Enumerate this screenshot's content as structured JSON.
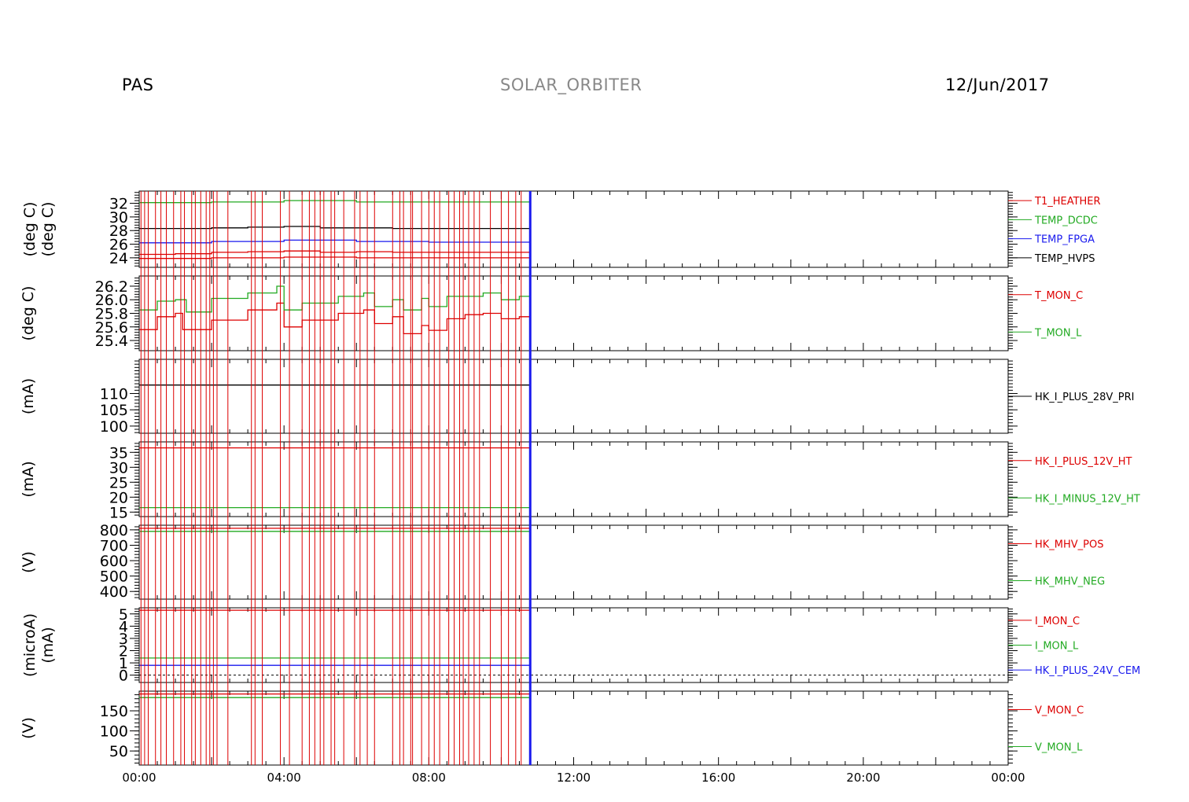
{
  "header": {
    "instrument": "PAS",
    "mission": "SOLAR_ORBITER",
    "date": "12/Jun/2017"
  },
  "colors": {
    "red": "#dd0000",
    "green": "#22aa22",
    "blue": "#1a1aee",
    "black": "#000000"
  },
  "chart_data": {
    "type": "line",
    "x_axis": {
      "unit": "hours",
      "range": [
        0,
        24
      ],
      "tick_labels": [
        "00:00",
        "04:00",
        "08:00",
        "12:00",
        "16:00",
        "20:00",
        "00:00"
      ],
      "tick_values": [
        0,
        4,
        8,
        12,
        16,
        20,
        24
      ]
    },
    "data_end_hour": 10.8,
    "panels": [
      {
        "ylabel": "(deg C)",
        "ylabel2": "(deg C)",
        "ylim": [
          22.6,
          33.8
        ],
        "yticks": [
          24,
          26,
          28,
          30,
          32
        ],
        "series": [
          {
            "name": "T1_HEATHER",
            "color": "red",
            "x": [
              0,
              1,
              2,
              3,
              4,
              5,
              6,
              7,
              8,
              9,
              10,
              10.8
            ],
            "y": [
              24.5,
              24.6,
              24.8,
              24.9,
              25.0,
              24.8,
              24.9,
              24.8,
              24.8,
              24.8,
              24.8,
              24.8
            ]
          },
          {
            "name": "TEMP_DCDC",
            "color": "green",
            "x": [
              0,
              2,
              4,
              6,
              8,
              10,
              10.8
            ],
            "y": [
              32.1,
              32.2,
              32.4,
              32.2,
              32.2,
              32.2,
              32.2
            ]
          },
          {
            "name": "TEMP_FPGA",
            "color": "blue",
            "x": [
              0,
              2,
              4,
              6,
              8,
              10,
              10.8
            ],
            "y": [
              26.2,
              26.4,
              26.6,
              26.4,
              26.3,
              26.3,
              26.3
            ]
          },
          {
            "name": "TEMP_HVPS",
            "color": "black",
            "x": [
              0,
              1,
              2,
              3,
              4,
              5,
              6,
              7,
              8,
              9,
              10,
              10.8
            ],
            "y": [
              28.3,
              28.3,
              28.4,
              28.5,
              28.6,
              28.4,
              28.4,
              28.3,
              28.3,
              28.3,
              28.3,
              28.3
            ]
          },
          {
            "name": "",
            "color": "red",
            "x": [
              0,
              2,
              4,
              6,
              8,
              10,
              10.8
            ],
            "y": [
              23.9,
              24.0,
              24.1,
              24.0,
              24.0,
              24.0,
              24.0
            ]
          }
        ]
      },
      {
        "ylabel": "(deg C)",
        "ylim": [
          25.25,
          26.35
        ],
        "yticks": [
          25.4,
          25.6,
          25.8,
          26.0,
          26.2
        ],
        "ytick_labels": [
          "25.4",
          "25.6",
          "25.8",
          "26.0",
          "26.2"
        ],
        "series": [
          {
            "name": "T_MON_C",
            "color": "red",
            "x": [
              0,
              0.5,
              1.0,
              1.2,
              2.0,
              3.0,
              3.8,
              4.0,
              4.5,
              5.5,
              6.2,
              6.5,
              7.0,
              7.3,
              7.8,
              8.0,
              8.5,
              9.0,
              9.5,
              10.0,
              10.5,
              10.8
            ],
            "y": [
              25.56,
              25.75,
              25.8,
              25.56,
              25.7,
              25.85,
              25.95,
              25.6,
              25.7,
              25.8,
              25.85,
              25.65,
              25.75,
              25.5,
              25.62,
              25.55,
              25.72,
              25.78,
              25.8,
              25.72,
              25.75,
              25.68
            ]
          },
          {
            "name": "T_MON_L",
            "color": "green",
            "x": [
              0,
              0.5,
              1.0,
              1.3,
              2.0,
              3.0,
              3.8,
              4.0,
              4.5,
              5.5,
              6.2,
              6.5,
              7.0,
              7.3,
              7.8,
              8.0,
              8.5,
              9.0,
              9.5,
              10.0,
              10.5,
              10.8
            ],
            "y": [
              25.85,
              25.98,
              26.0,
              25.82,
              26.02,
              26.1,
              26.2,
              25.85,
              25.95,
              26.05,
              26.1,
              25.9,
              26.0,
              25.85,
              26.02,
              25.9,
              26.05,
              26.05,
              26.1,
              26.0,
              26.05,
              25.95
            ]
          }
        ]
      },
      {
        "ylabel": "(mA)",
        "ylim": [
          97.8,
          120.5
        ],
        "yticks": [
          100,
          105,
          110
        ],
        "series": [
          {
            "name": "HK_I_PLUS_28V_PRI",
            "color": "black",
            "x": [
              0,
              10.8
            ],
            "y": [
              112.6,
              112.6
            ]
          }
        ]
      },
      {
        "ylabel": "(mA)",
        "ylim": [
          13.5,
          38.5
        ],
        "yticks": [
          15,
          20,
          25,
          30,
          35
        ],
        "series": [
          {
            "name": "HK_I_PLUS_12V_HT",
            "color": "red",
            "x": [
              0,
              10.8
            ],
            "y": [
              36.5,
              36.5
            ]
          },
          {
            "name": "HK_I_MINUS_12V_HT",
            "color": "green",
            "x": [
              0,
              10.8
            ],
            "y": [
              16.5,
              16.5
            ]
          }
        ]
      },
      {
        "ylabel": "(V)",
        "ylim": [
          350,
          830
        ],
        "yticks": [
          400,
          500,
          600,
          700,
          800
        ],
        "series": [
          {
            "name": "HK_MHV_POS",
            "color": "red",
            "x": [
              0,
              10.8
            ],
            "y": [
              810,
              810
            ]
          },
          {
            "name": "HK_MHV_NEG",
            "color": "green",
            "x": [
              0,
              10.8
            ],
            "y": [
              790,
              790
            ]
          }
        ]
      },
      {
        "ylabel": "(microA)",
        "ylabel2": "(mA)",
        "ylim": [
          -0.6,
          5.5
        ],
        "yticks": [
          0,
          1,
          2,
          3,
          4,
          5
        ],
        "zero_line": true,
        "series": [
          {
            "name": "I_MON_C",
            "color": "red",
            "x": [
              0,
              10.8
            ],
            "y": [
              5.3,
              5.3
            ]
          },
          {
            "name": "I_MON_L",
            "color": "green",
            "x": [
              0,
              10.8
            ],
            "y": [
              1.4,
              1.4
            ]
          },
          {
            "name": "HK_I_PLUS_24V_CEM",
            "color": "blue",
            "x": [
              0,
              10.8
            ],
            "y": [
              0.8,
              0.8
            ]
          }
        ]
      },
      {
        "ylabel": "(V)",
        "ylim": [
          15,
          199
        ],
        "yticks": [
          50,
          100,
          150
        ],
        "series": [
          {
            "name": "V_MON_C",
            "color": "red",
            "x": [
              0,
              10.8
            ],
            "y": [
              192,
              192
            ]
          },
          {
            "name": "V_MON_L",
            "color": "green",
            "x": [
              0,
              10.8
            ],
            "y": [
              183,
              183
            ]
          }
        ]
      }
    ],
    "event_marker_hours": [
      0.05,
      0.15,
      0.25,
      0.45,
      0.6,
      0.75,
      0.95,
      1.15,
      1.25,
      1.45,
      1.55,
      1.7,
      1.85,
      1.95,
      2.05,
      2.15,
      2.45,
      3.1,
      3.2,
      3.4,
      3.9,
      4.15,
      4.5,
      4.7,
      4.85,
      5.0,
      5.1,
      5.3,
      5.4,
      5.65,
      5.95,
      6.1,
      6.3,
      6.5,
      7.0,
      7.2,
      7.3,
      7.5,
      7.55,
      7.8,
      8.0,
      8.15,
      8.3,
      8.55,
      8.7,
      8.85,
      8.95,
      9.1,
      9.25,
      9.4,
      9.7,
      10.0,
      10.2,
      10.4,
      10.55
    ],
    "end_marker_hour": 10.8
  }
}
